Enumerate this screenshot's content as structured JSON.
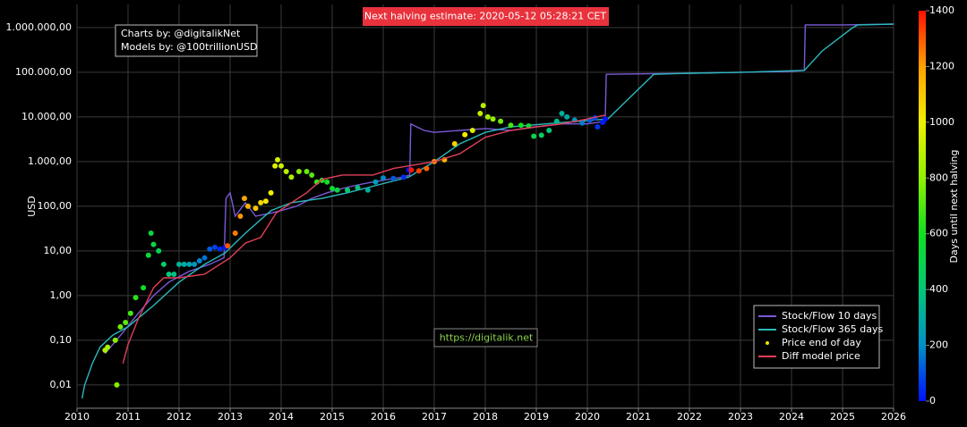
{
  "chart_data": {
    "type": "log-line-scatter",
    "title": "Next halving estimate: 2020-05-12 05:28:21 CET",
    "annotations": [
      "Charts by: @digitalikNet",
      "Models by: @100trillionUSD",
      "https://digitalik.net"
    ],
    "ylabel": "USD",
    "colorbar_label": "Days until next halving",
    "log_y": true,
    "grid": true,
    "legend": "lower right",
    "xlim": [
      2010,
      2026
    ],
    "xticks": [
      2010,
      2011,
      2012,
      2013,
      2014,
      2015,
      2016,
      2017,
      2018,
      2019,
      2020,
      2021,
      2022,
      2023,
      2024,
      2025,
      2026
    ],
    "ylim": [
      0.003,
      3300000
    ],
    "yticks": [
      {
        "value": 0.01,
        "label": "0,01"
      },
      {
        "value": 0.1,
        "label": "0,10"
      },
      {
        "value": 1,
        "label": "1,00"
      },
      {
        "value": 10,
        "label": "10,00"
      },
      {
        "value": 100,
        "label": "100,00"
      },
      {
        "value": 1000,
        "label": "1.000,00"
      },
      {
        "value": 10000,
        "label": "10.000,00"
      },
      {
        "value": 100000,
        "label": "100.000,00"
      },
      {
        "value": 1000000,
        "label": "1.000.000,00"
      }
    ],
    "clim": [
      0,
      1400
    ],
    "cticks": [
      0,
      200,
      400,
      600,
      800,
      1000,
      1200,
      1400
    ],
    "colorscale": [
      "#0010ff",
      "#0090c8",
      "#00c878",
      "#10e020",
      "#90f000",
      "#f0f000",
      "#ffa000",
      "#ff1000"
    ],
    "series": [
      {
        "name": "Stock/Flow 10 days",
        "type": "line",
        "color": "#7a5ad8",
        "x": [
          2010.55,
          2010.7,
          2010.9,
          2011.2,
          2011.5,
          2011.8,
          2012.2,
          2012.6,
          2012.88,
          2012.92,
          2013.0,
          2013.1,
          2013.3,
          2013.5,
          2013.8,
          2014.0,
          2014.3,
          2014.6,
          2014.9,
          2015.2,
          2015.5,
          2015.8,
          2016.1,
          2016.4,
          2016.52,
          2016.54,
          2016.8,
          2017.0,
          2017.5,
          2018.0,
          2018.5,
          2019.0,
          2019.5,
          2020.0,
          2020.35,
          2020.37,
          2021.0,
          2022,
          2023,
          2024.0,
          2024.25,
          2024.27,
          2025,
          2026
        ],
        "values": [
          0.05,
          0.08,
          0.15,
          0.4,
          1,
          2,
          3.5,
          5,
          7,
          150,
          200,
          60,
          120,
          60,
          70,
          80,
          100,
          150,
          200,
          250,
          300,
          350,
          400,
          450,
          500,
          7000,
          5000,
          4500,
          5000,
          5500,
          5000,
          6000,
          7000,
          7000,
          8000,
          90000,
          92000,
          95000,
          100000,
          105000,
          110000,
          1150000,
          1150000,
          1200000
        ]
      },
      {
        "name": "Stock/Flow 365 days",
        "type": "line",
        "color": "#2bb8bc",
        "x": [
          2010.1,
          2010.15,
          2010.3,
          2010.45,
          2010.7,
          2011,
          2011.5,
          2012,
          2012.5,
          2012.9,
          2013.3,
          2013.8,
          2014.2,
          2014.8,
          2015.3,
          2015.9,
          2016.5,
          2017,
          2017.5,
          2018,
          2018.5,
          2019.5,
          2020.4,
          2020.8,
          2021.3,
          2022,
          2023,
          2024.25,
          2024.6,
          2025.2,
          2025.3,
          2026
        ],
        "values": [
          0.005,
          0.01,
          0.03,
          0.07,
          0.13,
          0.2,
          0.6,
          2,
          5,
          9,
          25,
          80,
          120,
          150,
          200,
          300,
          450,
          1000,
          2500,
          4500,
          6000,
          7500,
          9000,
          25000,
          90000,
          95000,
          100000,
          110000,
          300000,
          1000000,
          1150000,
          1200000
        ]
      },
      {
        "name": "Price end of day",
        "type": "scatter",
        "color": "#f0e000",
        "x": [
          2010.55,
          2010.6,
          2010.75,
          2010.78,
          2010.85,
          2010.95,
          2011.05,
          2011.15,
          2011.3,
          2011.4,
          2011.45,
          2011.5,
          2011.6,
          2011.7,
          2011.8,
          2011.9,
          2012.0,
          2012.1,
          2012.2,
          2012.3,
          2012.4,
          2012.5,
          2012.6,
          2012.7,
          2012.8,
          2012.9,
          2012.95,
          2013.1,
          2013.2,
          2013.28,
          2013.35,
          2013.5,
          2013.6,
          2013.7,
          2013.8,
          2013.88,
          2013.93,
          2014.0,
          2014.1,
          2014.2,
          2014.35,
          2014.5,
          2014.6,
          2014.7,
          2014.8,
          2014.9,
          2015.0,
          2015.1,
          2015.3,
          2015.5,
          2015.7,
          2015.85,
          2016.0,
          2016.2,
          2016.4,
          2016.5,
          2016.55,
          2016.7,
          2016.85,
          2017.0,
          2017.2,
          2017.4,
          2017.6,
          2017.75,
          2017.9,
          2017.96,
          2018.05,
          2018.15,
          2018.3,
          2018.5,
          2018.7,
          2018.85,
          2018.95,
          2019.1,
          2019.25,
          2019.4,
          2019.5,
          2019.6,
          2019.75,
          2019.9,
          2020.05,
          2020.15,
          2020.2,
          2020.3,
          2020.35
        ],
        "values": [
          0.06,
          0.07,
          0.1,
          0.01,
          0.2,
          0.25,
          0.4,
          0.9,
          1.5,
          8,
          25,
          14,
          10,
          5,
          3,
          3,
          5,
          5,
          5,
          5,
          6,
          7,
          11,
          12,
          11,
          12,
          13,
          25,
          60,
          150,
          100,
          90,
          120,
          130,
          200,
          800,
          1100,
          800,
          600,
          450,
          600,
          600,
          500,
          350,
          380,
          350,
          250,
          230,
          230,
          260,
          230,
          350,
          430,
          420,
          450,
          650,
          650,
          620,
          700,
          1000,
          1100,
          2500,
          4000,
          5000,
          12000,
          18000,
          10000,
          9000,
          8000,
          6500,
          6500,
          6300,
          3700,
          3900,
          5000,
          8000,
          12000,
          10000,
          8500,
          7300,
          8500,
          9500,
          6000,
          7500,
          9000
        ],
        "days": [
          860,
          840,
          790,
          780,
          750,
          715,
          680,
          640,
          590,
          550,
          535,
          515,
          480,
          440,
          405,
          370,
          330,
          295,
          260,
          225,
          185,
          150,
          115,
          75,
          40,
          5,
          1300,
          1250,
          1215,
          1185,
          1160,
          1105,
          1070,
          1030,
          995,
          965,
          950,
          920,
          885,
          850,
          795,
          740,
          705,
          665,
          630,
          595,
          555,
          520,
          445,
          375,
          300,
          245,
          190,
          115,
          45,
          5,
          1390,
          1335,
          1280,
          1225,
          1150,
          1080,
          1005,
          950,
          895,
          875,
          840,
          805,
          750,
          680,
          605,
          550,
          515,
          460,
          405,
          350,
          315,
          280,
          225,
          170,
          115,
          75,
          60,
          20,
          5
        ]
      },
      {
        "name": "Diff model price",
        "type": "line",
        "color": "#e04058",
        "x": [
          2010.9,
          2011,
          2011.2,
          2011.5,
          2011.7,
          2012.0,
          2012.5,
          2012.8,
          2013.0,
          2013.3,
          2013.6,
          2013.9,
          2014.2,
          2014.5,
          2014.8,
          2015.2,
          2015.8,
          2016.2,
          2016.5,
          2017.0,
          2017.5,
          2018.0,
          2018.5,
          2019.0,
          2019.5,
          2020.0,
          2020.35
        ],
        "values": [
          0.03,
          0.08,
          0.3,
          1.5,
          2.5,
          2.5,
          3,
          5,
          7,
          15,
          20,
          70,
          120,
          200,
          400,
          500,
          500,
          700,
          800,
          1000,
          1500,
          3500,
          5000,
          6000,
          7000,
          9000,
          11000
        ]
      }
    ]
  }
}
